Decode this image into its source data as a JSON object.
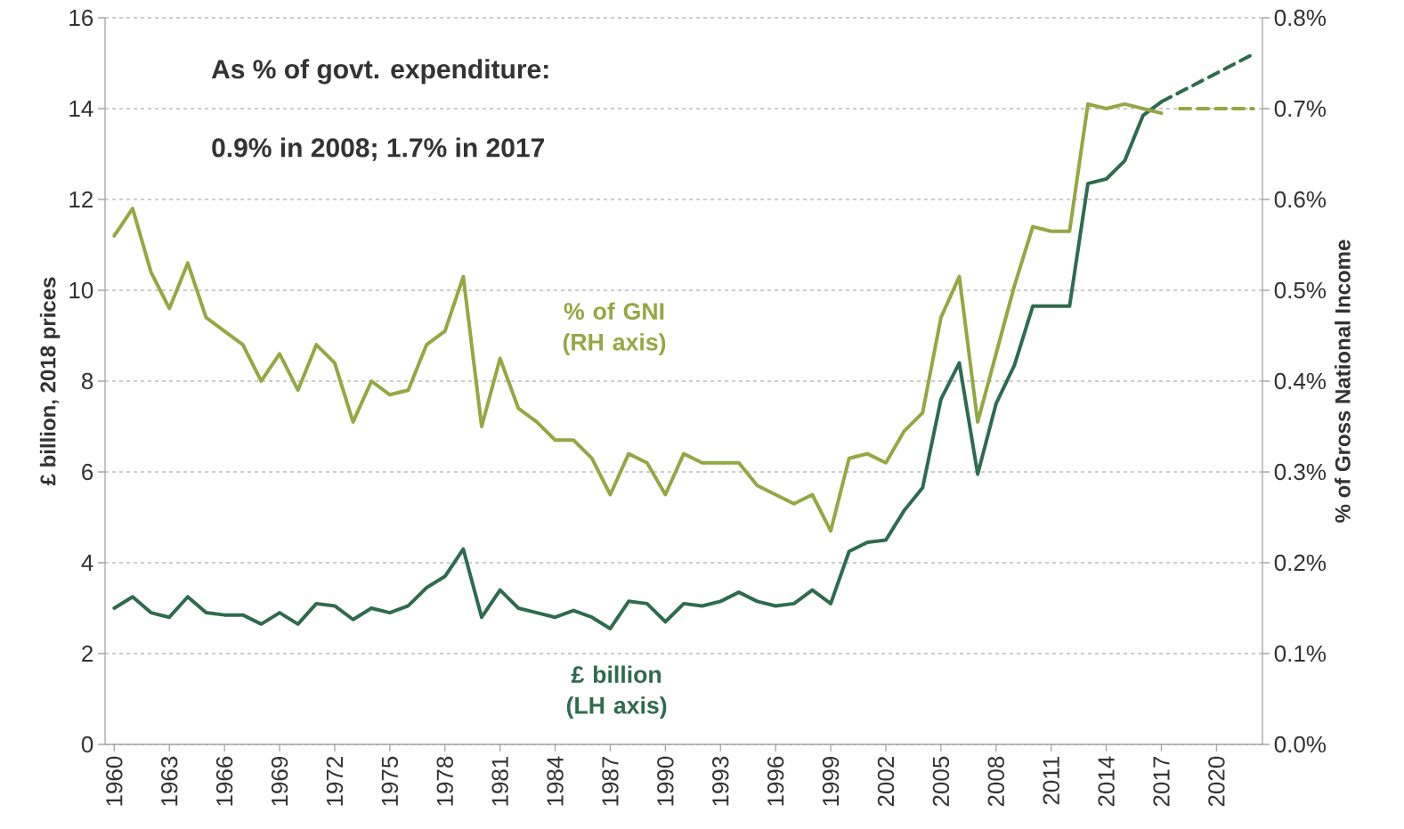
{
  "chart_data": {
    "type": "line",
    "x": [
      1960,
      1961,
      1962,
      1963,
      1964,
      1965,
      1966,
      1967,
      1968,
      1969,
      1970,
      1971,
      1972,
      1973,
      1974,
      1975,
      1976,
      1977,
      1978,
      1979,
      1980,
      1981,
      1982,
      1983,
      1984,
      1985,
      1986,
      1987,
      1988,
      1989,
      1990,
      1991,
      1992,
      1993,
      1994,
      1995,
      1996,
      1997,
      1998,
      1999,
      2000,
      2001,
      2002,
      2003,
      2004,
      2005,
      2006,
      2007,
      2008,
      2009,
      2010,
      2011,
      2012,
      2013,
      2014,
      2015,
      2016,
      2017
    ],
    "series": [
      {
        "name": "£ billion (LH axis)",
        "color": "#2e6b4f",
        "axis": "y",
        "line_style": "solid",
        "values": [
          3.0,
          3.25,
          2.9,
          2.8,
          3.25,
          2.9,
          2.85,
          2.85,
          2.65,
          2.9,
          2.65,
          3.1,
          3.05,
          2.75,
          3.0,
          2.9,
          3.05,
          3.45,
          3.7,
          4.3,
          2.8,
          3.4,
          3.0,
          2.9,
          2.8,
          2.95,
          2.8,
          2.55,
          3.15,
          3.1,
          2.7,
          3.1,
          3.05,
          3.15,
          3.35,
          3.15,
          3.05,
          3.1,
          3.4,
          3.1,
          4.25,
          4.45,
          4.5,
          5.15,
          5.65,
          7.6,
          8.4,
          5.95,
          7.5,
          8.35,
          9.65,
          9.65,
          9.65,
          12.35,
          12.45,
          12.85,
          13.85,
          14.15
        ]
      },
      {
        "name": "% of GNI (RH axis)",
        "color": "#93a843",
        "axis": "y2",
        "line_style": "solid",
        "values": [
          0.56,
          0.59,
          0.52,
          0.48,
          0.53,
          0.47,
          0.455,
          0.44,
          0.4,
          0.43,
          0.39,
          0.44,
          0.42,
          0.355,
          0.4,
          0.385,
          0.39,
          0.44,
          0.455,
          0.515,
          0.35,
          0.425,
          0.37,
          0.355,
          0.335,
          0.335,
          0.315,
          0.275,
          0.32,
          0.31,
          0.275,
          0.32,
          0.31,
          0.31,
          0.31,
          0.285,
          0.275,
          0.265,
          0.275,
          0.235,
          0.315,
          0.32,
          0.31,
          0.345,
          0.365,
          0.47,
          0.515,
          0.355,
          0.43,
          0.505,
          0.57,
          0.565,
          0.565,
          0.705,
          0.7,
          0.705,
          0.7,
          0.695
        ]
      },
      {
        "color": "#2e6b4f",
        "axis": "y",
        "line_style": "dashed",
        "x": [
          2017,
          2022
        ],
        "values": [
          14.15,
          15.2
        ]
      },
      {
        "color": "#93a843",
        "axis": "y2",
        "line_style": "dashed",
        "x": [
          2018,
          2022
        ],
        "values": [
          0.7,
          0.7
        ]
      }
    ],
    "xlim": [
      1959.5,
      2022.5
    ],
    "xticks": [
      1960,
      1963,
      1966,
      1969,
      1972,
      1975,
      1978,
      1981,
      1984,
      1987,
      1990,
      1993,
      1996,
      1999,
      2002,
      2005,
      2008,
      2011,
      2014,
      2017,
      2020
    ],
    "ylim": [
      0,
      16
    ],
    "yticks": [
      0,
      2,
      4,
      6,
      8,
      10,
      12,
      14,
      16
    ],
    "y2lim": [
      0,
      0.8
    ],
    "y2ticks": [
      {
        "value": 0,
        "label": "0.0%"
      },
      {
        "value": 0.1,
        "label": "0.1%"
      },
      {
        "value": 0.2,
        "label": "0.2%"
      },
      {
        "value": 0.3,
        "label": "0.3%"
      },
      {
        "value": 0.4,
        "label": "0.4%"
      },
      {
        "value": 0.5,
        "label": "0.5%"
      },
      {
        "value": 0.6,
        "label": "0.6%"
      },
      {
        "value": 0.7,
        "label": "0.7%"
      },
      {
        "value": 0.8,
        "label": "0.8%"
      }
    ],
    "ylabel": "£ billion, 2018 prices",
    "y2label": "% of Gross National Income",
    "grid": "y",
    "marker": "none",
    "annotations": [
      "As % of govt. expenditure:",
      "0.9% in 2008; 1.7% in 2017"
    ]
  }
}
